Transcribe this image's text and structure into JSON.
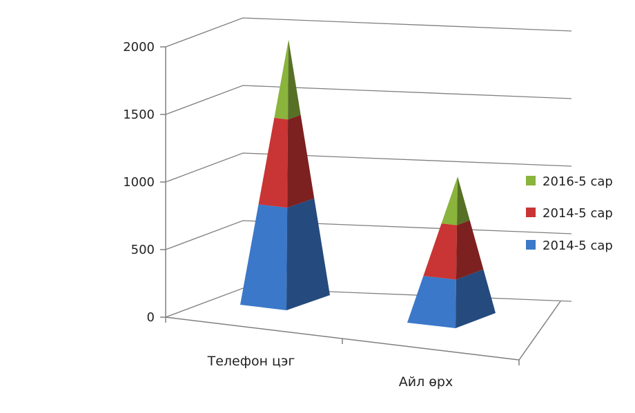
{
  "chart_data": {
    "type": "bar",
    "style": "3d-stacked-pyramid",
    "categories": [
      "Телефон  цэг",
      "Айл өрх"
    ],
    "series": [
      {
        "name": "2014-5 сар",
        "values": [
          720,
          330
        ],
        "color": "#3b78c9"
      },
      {
        "name": "2014-5 сар",
        "values": [
          620,
          370
        ],
        "color": "#c93434"
      },
      {
        "name": "2016-5 сар",
        "values": [
          560,
          330
        ],
        "color": "#8ab43c"
      }
    ],
    "legend_order": [
      2,
      1,
      0
    ],
    "legend_position": "right",
    "ylim": [
      0,
      2000
    ],
    "yticks": [
      "0",
      "500",
      "1000",
      "1500",
      "2000"
    ],
    "grid": true,
    "title": "",
    "xlabel": "",
    "ylabel": ""
  }
}
